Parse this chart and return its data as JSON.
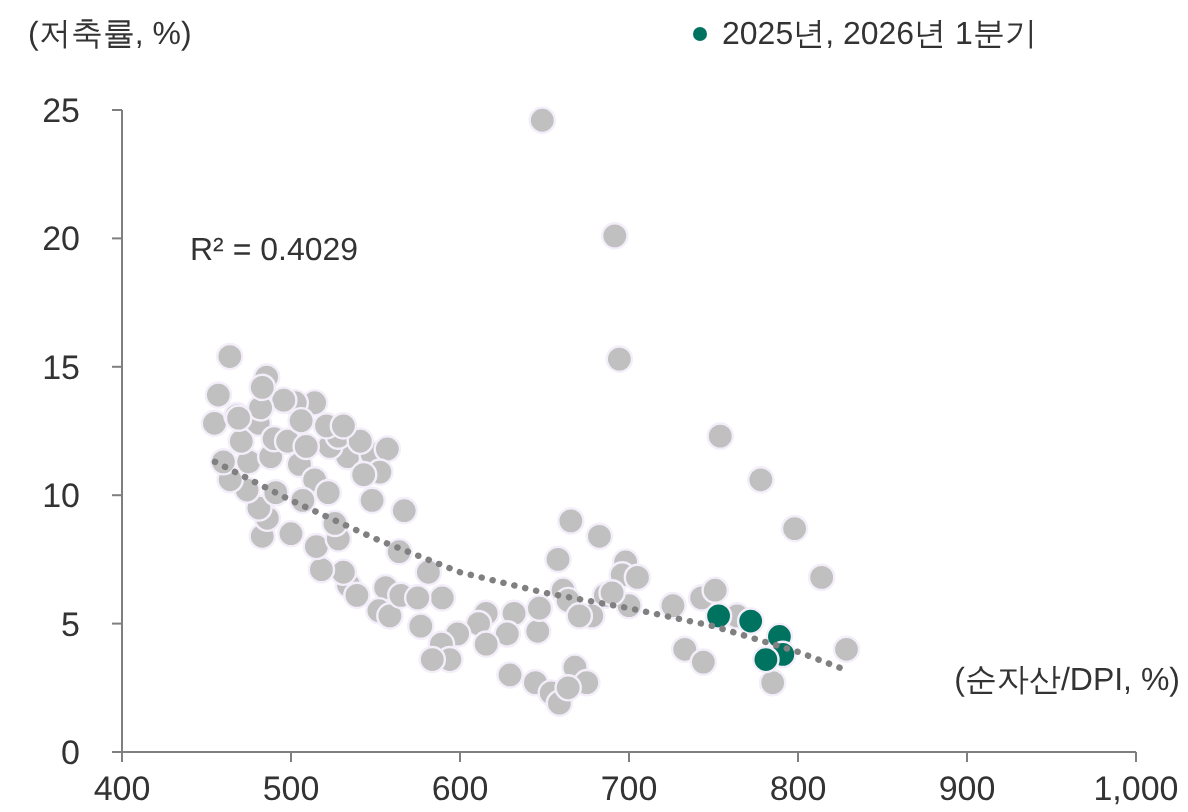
{
  "chart_data": {
    "type": "scatter",
    "xlabel": "(순자산/DPI, %)",
    "ylabel": "(저축률, %)",
    "annotations": [
      "R² = 0.4029"
    ],
    "xlim": [
      400,
      1000
    ],
    "ylim": [
      0,
      25
    ],
    "xticks": [
      400,
      500,
      600,
      700,
      800,
      900,
      {
        "value": 1000,
        "label": "1,000"
      }
    ],
    "yticks": [
      0,
      5,
      10,
      15,
      20,
      25
    ],
    "legend": "top right",
    "marker": "circle",
    "series": [
      {
        "color": "#c0c0c0",
        "x": [
          648.7,
          691.6,
          694.3,
          754,
          778,
          798,
          814,
          828.7,
          463.8,
          457,
          454.7,
          485.6,
          480.6,
          468,
          726,
          743,
          751,
          733,
          744,
          785,
          764,
          665.6,
          682.5,
          658,
          661,
          664,
          698,
          696,
          705,
          686,
          678,
          700,
          690,
          670.6,
          646,
          647,
          632,
          628,
          615.5,
          611,
          615.5,
          629.6,
          644.6,
          654,
          658.8,
          668,
          675,
          664,
          598.6,
          589,
          594,
          583.6,
          589.5,
          576.8,
          581.3,
          567,
          548,
          564,
          556,
          552,
          558.5,
          565,
          575,
          534,
          531,
          539,
          518,
          515,
          528,
          526,
          500,
          483,
          486,
          481,
          491,
          474,
          464,
          460,
          475,
          488,
          505,
          514,
          507,
          522,
          533.5,
          523,
          528,
          521,
          514,
          502.5,
          495.7,
          490,
          498,
          509,
          506,
          548,
          557,
          552.6,
          543,
          541,
          531,
          470.6,
          482,
          483,
          469
        ],
        "values": [
          24.6,
          20.1,
          15.3,
          12.3,
          10.6,
          8.7,
          6.8,
          4.0,
          15.4,
          13.9,
          12.8,
          14.6,
          12.8,
          13.1,
          5.7,
          6.0,
          6.3,
          4.0,
          3.5,
          2.7,
          5.3,
          9.0,
          8.4,
          7.5,
          6.3,
          5.9,
          7.4,
          6.9,
          6.8,
          6.1,
          5.3,
          5.7,
          6.2,
          5.3,
          4.7,
          5.6,
          5.4,
          4.6,
          5.4,
          5.0,
          4.2,
          3.0,
          2.7,
          2.3,
          1.9,
          3.3,
          2.7,
          2.5,
          4.6,
          4.2,
          3.6,
          3.6,
          6.0,
          4.9,
          7.0,
          9.4,
          9.8,
          7.8,
          6.4,
          5.5,
          5.3,
          6.1,
          6.0,
          6.5,
          7.0,
          6.1,
          7.1,
          8.0,
          8.3,
          8.9,
          8.5,
          8.4,
          9.1,
          9.5,
          10.1,
          10.2,
          10.6,
          11.3,
          11.3,
          11.5,
          11.2,
          10.6,
          9.8,
          10.1,
          11.5,
          11.9,
          12.3,
          12.7,
          13.6,
          13.6,
          13.7,
          12.2,
          12.1,
          11.9,
          12.9,
          11.6,
          11.8,
          10.9,
          10.8,
          12.1,
          12.7,
          12.1,
          13.4,
          14.2,
          13.0
        ]
      },
      {
        "name": "2025년, 2026년 1분기",
        "color": "#007360",
        "x": [
          753,
          772,
          789,
          791,
          781
        ],
        "values": [
          5.3,
          5.1,
          4.5,
          3.8,
          3.6
        ]
      },
      {
        "type": "line",
        "color": "#808080",
        "line_style": "dotted",
        "marker": "none",
        "x": [
          455,
          500,
          550,
          600,
          650,
          700,
          750,
          800,
          828
        ],
        "values": [
          11.3,
          9.8,
          8.3,
          7.0,
          6.2,
          5.6,
          4.9,
          3.9,
          3.2
        ]
      }
    ]
  }
}
